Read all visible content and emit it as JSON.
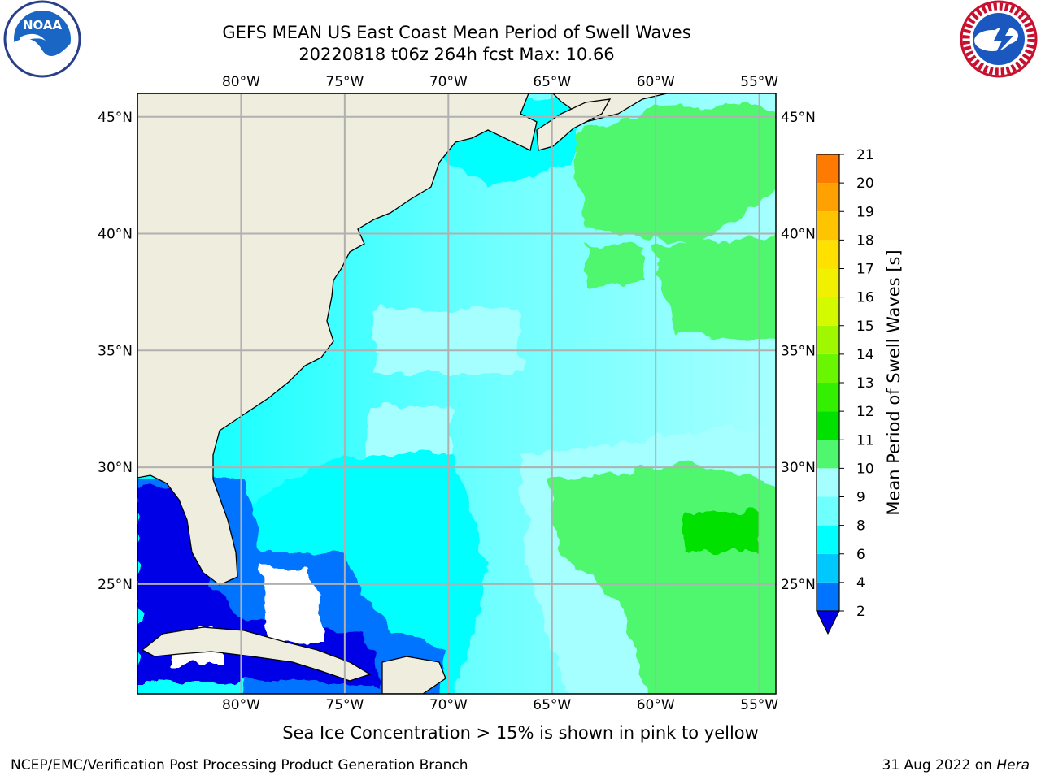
{
  "title": {
    "line1": "GEFS MEAN US East Coast Mean Period of Swell Waves",
    "line2": "20220818 t06z 264h fcst   Max: 10.66"
  },
  "logos": {
    "left": {
      "icon": "noaa-logo",
      "text": "NOAA",
      "ring_text": "NATIONAL OCEANIC AND ATMOSPHERIC ADMINISTRATION · U.S. DEPARTMENT OF COMMERCE"
    },
    "right": {
      "icon": "nws-logo",
      "ring_text": "NATIONAL WEATHER SERVICE"
    }
  },
  "map": {
    "lon_labels": [
      "80°W",
      "75°W",
      "70°W",
      "65°W",
      "60°W",
      "55°W"
    ],
    "lat_labels": [
      "45°N",
      "40°N",
      "35°N",
      "30°N",
      "25°N"
    ],
    "lon_values": [
      -80,
      -75,
      -70,
      -65,
      -60,
      -55
    ],
    "lat_values": [
      45,
      40,
      35,
      30,
      25
    ],
    "extent": {
      "lon_min": -85,
      "lon_max": -54.2,
      "lat_min": 20.3,
      "lat_max": 46
    },
    "colors": {
      "land": "#efedde",
      "gridline": "#b0b0b0",
      "coast": "#000000"
    }
  },
  "colorbar": {
    "label": "Mean Period of Swell Waves [s]",
    "ticks": [
      "2",
      "4",
      "6",
      "8",
      "9",
      "10",
      "11",
      "12",
      "13",
      "14",
      "15",
      "16",
      "17",
      "18",
      "19",
      "20",
      "21"
    ],
    "colors": [
      "#0073ff",
      "#00c8ff",
      "#00ffff",
      "#6effff",
      "#a5ffff",
      "#4ff76e",
      "#00e100",
      "#33f000",
      "#6af500",
      "#a0f800",
      "#d4fa00",
      "#f0f000",
      "#ffe100",
      "#ffc400",
      "#ffa100",
      "#ff7a00",
      "#ff4a00",
      "#ff0000"
    ],
    "under_color": "#0000e6"
  },
  "note": "Sea Ice Concentration > 15% is shown in pink to yellow",
  "footer": {
    "left": "NCEP/EMC/Verification Post Processing Product Generation Branch",
    "right_prefix": "31 Aug 2022 on ",
    "right_host": "Hera"
  }
}
